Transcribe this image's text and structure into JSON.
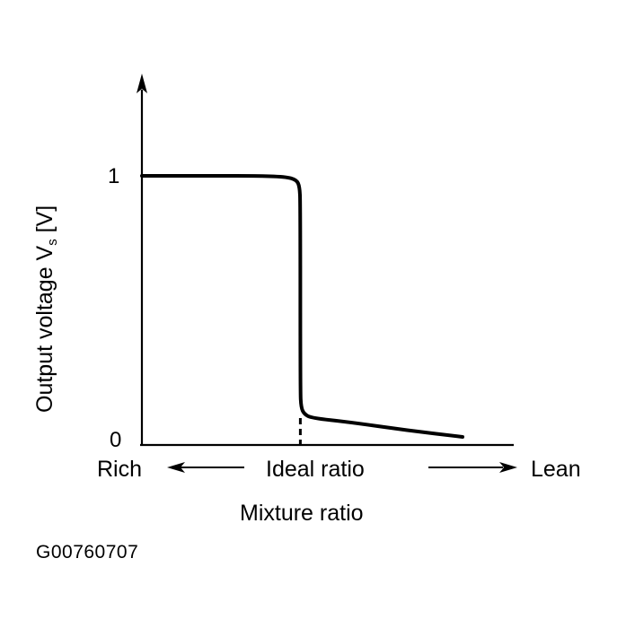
{
  "chart_data": {
    "type": "line",
    "ylabel": "Output voltage V",
    "ylabel_subscript": "s",
    "ylabel_unit": " [V]",
    "xlabel": "Mixture ratio",
    "y_ticks": [
      "1",
      "0"
    ],
    "ylim": [
      0,
      1.3
    ],
    "x_annotations": {
      "left": "Rich",
      "center": "Ideal ratio",
      "right": "Lean"
    },
    "series": [
      {
        "x": [
          0.0,
          0.1,
          0.2,
          0.3,
          0.38,
          0.41,
          0.418,
          0.42,
          0.42,
          0.422,
          0.43,
          0.45,
          0.55,
          0.7,
          0.85
        ],
        "values": [
          1.0,
          1.0,
          1.0,
          1.0,
          0.997,
          0.985,
          0.96,
          0.9,
          0.2,
          0.14,
          0.115,
          0.1,
          0.085,
          0.055,
          0.03
        ]
      }
    ],
    "ideal_x": 0.42,
    "figure_id": "G00760707"
  }
}
